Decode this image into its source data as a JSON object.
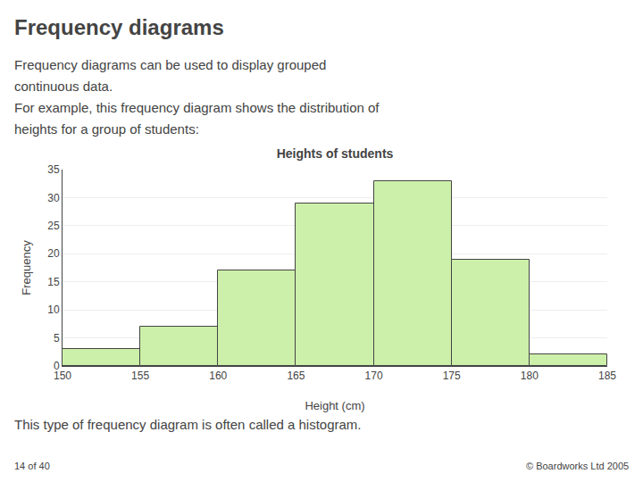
{
  "chart_data": {
    "type": "histogram",
    "title": "Heights of students",
    "annotations": [
      "Frequency diagrams",
      "Frequency diagrams can be used to display grouped",
      "continuous data.",
      "For example, this frequency diagram shows the distribution of",
      "heights for a group of students:",
      "This type of frequency diagram is often called a histogram.",
      "14 of 40",
      "© Boardworks Ltd 2005"
    ],
    "bins": [
      150,
      155,
      160,
      165,
      170,
      175,
      180,
      185
    ],
    "values": [
      3,
      7,
      17,
      29,
      33,
      19,
      2
    ],
    "color": "#ccf0aa",
    "xlabel": "Height (cm)",
    "ylabel": "Frequency",
    "xlim": [
      150,
      185
    ],
    "xticks": [
      150,
      155,
      160,
      165,
      170,
      175,
      180,
      185
    ],
    "ylim": [
      0,
      35
    ],
    "yticks": [
      0,
      5,
      10,
      15,
      20,
      25,
      30,
      35
    ],
    "grid": true
  }
}
